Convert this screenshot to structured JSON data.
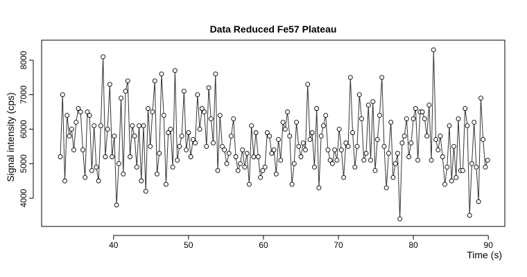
{
  "chart_data": {
    "type": "line",
    "title": "Data Reduced Fe57 Plateau",
    "x_label": "Time (s)",
    "y_label": "Signal intensity (cps)",
    "color": "#333333",
    "markers": true,
    "xlim": [
      30.4,
      92.2
    ],
    "xticks": [
      40,
      50,
      60,
      70,
      80,
      90
    ],
    "ylim": [
      3180,
      8580
    ],
    "yticks": [
      4000,
      5000,
      6000,
      7000,
      8000
    ],
    "x": [
      32.9,
      33.2,
      33.5,
      33.8,
      34.1,
      34.4,
      34.7,
      35,
      35.3,
      35.6,
      35.9,
      36.2,
      36.5,
      36.8,
      37.1,
      37.4,
      37.7,
      38,
      38.3,
      38.6,
      38.9,
      39.2,
      39.5,
      39.8,
      40.1,
      40.4,
      40.7,
      41,
      41.3,
      41.6,
      41.9,
      42.2,
      42.5,
      42.8,
      43.1,
      43.4,
      43.7,
      44,
      44.3,
      44.6,
      44.9,
      45.2,
      45.5,
      45.8,
      46.1,
      46.4,
      46.7,
      47,
      47.3,
      47.6,
      47.9,
      48.2,
      48.5,
      48.8,
      49.1,
      49.4,
      49.7,
      50,
      50.3,
      50.6,
      50.9,
      51.2,
      51.5,
      51.8,
      52.1,
      52.4,
      52.7,
      53,
      53.3,
      53.6,
      53.9,
      54.2,
      54.5,
      54.8,
      55.1,
      55.4,
      55.7,
      56,
      56.3,
      56.6,
      56.9,
      57.2,
      57.5,
      57.8,
      58.1,
      58.4,
      58.7,
      59,
      59.3,
      59.6,
      59.9,
      60.2,
      60.5,
      60.8,
      61.1,
      61.4,
      61.7,
      62,
      62.3,
      62.6,
      62.9,
      63.2,
      63.5,
      63.8,
      64.1,
      64.4,
      64.7,
      65,
      65.3,
      65.6,
      65.9,
      66.2,
      66.5,
      66.8,
      67.1,
      67.4,
      67.7,
      68,
      68.3,
      68.6,
      68.9,
      69.2,
      69.5,
      69.8,
      70.1,
      70.4,
      70.7,
      71,
      71.3,
      71.6,
      71.9,
      72.2,
      72.5,
      72.8,
      73.1,
      73.4,
      73.7,
      74,
      74.3,
      74.6,
      74.9,
      75.2,
      75.5,
      75.8,
      76.1,
      76.4,
      76.7,
      77,
      77.3,
      77.6,
      77.9,
      78.2,
      78.5,
      78.8,
      79.1,
      79.4,
      79.7,
      80,
      80.3,
      80.6,
      80.9,
      81.2,
      81.5,
      81.8,
      82.1,
      82.4,
      82.7,
      83,
      83.3,
      83.6,
      83.9,
      84.2,
      84.5,
      84.8,
      85.1,
      85.4,
      85.7,
      86,
      86.3,
      86.6,
      86.9,
      87.2,
      87.5,
      87.8,
      88.1,
      88.4,
      88.7,
      89,
      89.3,
      89.6,
      89.9
    ],
    "values": [
      5200,
      7000,
      4500,
      6400,
      5800,
      6000,
      5400,
      6200,
      6600,
      6500,
      5400,
      4600,
      6500,
      6400,
      4800,
      6100,
      4900,
      4500,
      6100,
      8100,
      5200,
      6000,
      7300,
      5200,
      5800,
      3800,
      5000,
      6900,
      4700,
      7100,
      7400,
      5200,
      6100,
      5800,
      4900,
      6100,
      4500,
      6100,
      4200,
      6600,
      5500,
      6500,
      7400,
      4700,
      5300,
      7600,
      6400,
      4400,
      5900,
      6000,
      4900,
      7700,
      5100,
      5500,
      5800,
      7100,
      5400,
      5900,
      5200,
      5700,
      5600,
      7000,
      6000,
      6600,
      6500,
      5500,
      7200,
      6300,
      5600,
      7600,
      4800,
      6400,
      5500,
      5400,
      5000,
      5300,
      5800,
      6300,
      5200,
      4800,
      5000,
      5400,
      4900,
      5300,
      4400,
      6100,
      5200,
      5900,
      5200,
      4600,
      4800,
      4900,
      5900,
      5800,
      5300,
      5400,
      4700,
      5700,
      5100,
      6200,
      6000,
      6500,
      5800,
      4400,
      5000,
      6200,
      5500,
      5200,
      5600,
      5400,
      7300,
      5700,
      5900,
      4900,
      6600,
      4300,
      5800,
      6100,
      6400,
      5400,
      5100,
      5000,
      5400,
      5100,
      6000,
      5400,
      4600,
      5600,
      5500,
      7500,
      5900,
      4900,
      5500,
      7000,
      6300,
      5100,
      5300,
      6700,
      5100,
      6800,
      4800,
      5700,
      6400,
      7500,
      5500,
      4300,
      5300,
      6200,
      4600,
      5000,
      5300,
      3400,
      5600,
      5800,
      6300,
      5200,
      5600,
      6300,
      6600,
      5100,
      6500,
      6500,
      6300,
      5800,
      6700,
      5100,
      8300,
      5700,
      5400,
      5800,
      5200,
      4400,
      4900,
      6100,
      4500,
      5500,
      4600,
      6300,
      4800,
      4800,
      6600,
      6100,
      3500,
      5000,
      6200,
      4900,
      3900,
      6900,
      5700,
      4900,
      5100
    ]
  }
}
